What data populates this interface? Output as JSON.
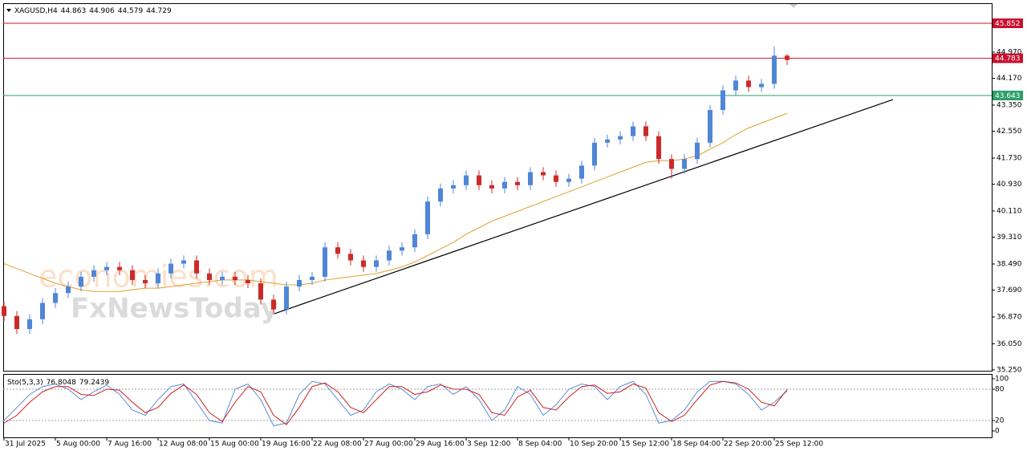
{
  "chart_data": [
    {
      "type": "candlestick",
      "symbol": "XAGUSD,H4",
      "xlim": [
        -0.0625,
        76.9375
      ],
      "xticks": [
        {
          "value": 0,
          "label": "31 Jul 2025"
        },
        {
          "value": 4,
          "label": "5 Aug 00:00"
        },
        {
          "value": 8,
          "label": "7 Aug 16:00"
        },
        {
          "value": 12,
          "label": "12 Aug 08:00"
        },
        {
          "value": 16,
          "label": "15 Aug 00:00"
        },
        {
          "value": 20,
          "label": "19 Aug 16:00"
        },
        {
          "value": 24,
          "label": "22 Aug 08:00"
        },
        {
          "value": 28,
          "label": "27 Aug 00:00"
        },
        {
          "value": 32,
          "label": "29 Aug 16:00"
        },
        {
          "value": 36,
          "label": "3 Sep 12:00"
        },
        {
          "value": 40,
          "label": "8 Sep 04:00"
        },
        {
          "value": 44,
          "label": "10 Sep 20:00"
        },
        {
          "value": 48,
          "label": "15 Sep 12:00"
        },
        {
          "value": 52,
          "label": "18 Sep 04:00"
        },
        {
          "value": 56,
          "label": "22 Sep 20:00"
        },
        {
          "value": 60,
          "label": "25 Sep 12:00"
        }
      ],
      "ylim": [
        35.225,
        46.466
      ],
      "yticks": [
        {
          "value": 35.25,
          "label": "35.250"
        },
        {
          "value": 36.05,
          "label": "36.050"
        },
        {
          "value": 36.87,
          "label": "36.870"
        },
        {
          "value": 37.69,
          "label": "37.690"
        },
        {
          "value": 38.49,
          "label": "38.490"
        },
        {
          "value": 39.31,
          "label": "39.310"
        },
        {
          "value": 40.11,
          "label": "40.110"
        },
        {
          "value": 40.93,
          "label": "40.930"
        },
        {
          "value": 41.73,
          "label": "41.730"
        },
        {
          "value": 42.55,
          "label": "42.550"
        },
        {
          "value": 43.35,
          "label": "43.350"
        },
        {
          "value": 44.17,
          "label": "44.170"
        },
        {
          "value": 44.97,
          "label": "44.970"
        }
      ],
      "up_color": "#4f86d6",
      "down_color": "#cc2a2a",
      "open": [
        37.2,
        36.9,
        36.5,
        36.8,
        37.3,
        37.6,
        37.8,
        38.1,
        38.3,
        38.4,
        38.3,
        38.0,
        37.9,
        38.2,
        38.5,
        38.6,
        38.2,
        38.0,
        38.1,
        38.0,
        37.9,
        37.4,
        37.1,
        37.8,
        38.0,
        38.1,
        39.0,
        38.8,
        38.6,
        38.4,
        38.6,
        38.9,
        39.0,
        39.4,
        40.4,
        40.8,
        40.9,
        41.2,
        40.9,
        40.8,
        41.0,
        40.9,
        41.3,
        41.2,
        41.0,
        41.1,
        41.5,
        42.2,
        42.3,
        42.4,
        42.7,
        42.4,
        41.7,
        41.4,
        41.7,
        42.2,
        43.2,
        43.8,
        44.1,
        43.9,
        44.0,
        44.863
      ],
      "high": [
        37.35,
        37.05,
        36.95,
        37.45,
        37.75,
        37.95,
        38.25,
        38.45,
        38.55,
        38.55,
        38.45,
        38.15,
        38.35,
        38.65,
        38.75,
        38.75,
        38.35,
        38.25,
        38.25,
        38.15,
        38.05,
        37.55,
        37.95,
        38.15,
        38.25,
        39.15,
        39.15,
        38.95,
        38.75,
        38.75,
        39.05,
        39.15,
        39.55,
        40.55,
        40.95,
        41.05,
        41.35,
        41.35,
        41.05,
        41.15,
        41.15,
        41.45,
        41.45,
        41.35,
        41.25,
        41.65,
        42.35,
        42.45,
        42.55,
        42.85,
        42.85,
        42.55,
        41.85,
        41.85,
        42.35,
        43.35,
        43.95,
        44.25,
        44.25,
        44.15,
        45.15,
        44.906
      ],
      "low": [
        36.75,
        36.35,
        36.35,
        36.65,
        37.15,
        37.45,
        37.65,
        37.95,
        38.15,
        38.15,
        37.85,
        37.75,
        37.75,
        38.05,
        38.35,
        38.05,
        37.85,
        37.85,
        37.85,
        37.75,
        37.25,
        36.95,
        36.95,
        37.65,
        37.85,
        37.95,
        38.65,
        38.45,
        38.25,
        38.25,
        38.45,
        38.75,
        38.85,
        39.25,
        40.25,
        40.65,
        40.75,
        40.75,
        40.65,
        40.65,
        40.75,
        40.75,
        41.05,
        40.85,
        40.85,
        40.95,
        41.35,
        42.05,
        42.15,
        42.25,
        42.25,
        41.55,
        41.1,
        41.25,
        41.55,
        42.05,
        43.05,
        43.65,
        43.75,
        43.75,
        43.85,
        44.579
      ],
      "close": [
        36.9,
        36.5,
        36.8,
        37.3,
        37.6,
        37.8,
        38.1,
        38.3,
        38.4,
        38.3,
        38.0,
        37.9,
        38.2,
        38.5,
        38.6,
        38.2,
        38.0,
        38.1,
        38.0,
        37.9,
        37.4,
        37.1,
        37.8,
        38.0,
        38.1,
        39.0,
        38.8,
        38.6,
        38.4,
        38.6,
        38.9,
        39.0,
        39.4,
        40.4,
        40.8,
        40.9,
        41.2,
        40.9,
        40.8,
        41.0,
        40.9,
        41.3,
        41.2,
        41.0,
        41.1,
        41.5,
        42.2,
        42.3,
        42.4,
        42.7,
        42.4,
        41.7,
        41.4,
        41.7,
        42.2,
        43.2,
        43.8,
        44.1,
        43.9,
        44.0,
        44.863,
        44.729
      ],
      "moving_average": {
        "color": "#e0a030",
        "values": [
          38.5,
          38.35,
          38.2,
          38.05,
          37.9,
          37.8,
          37.7,
          37.65,
          37.65,
          37.65,
          37.7,
          37.75,
          37.75,
          37.8,
          37.85,
          37.9,
          37.95,
          38.0,
          38.0,
          38.0,
          37.95,
          37.9,
          37.85,
          37.85,
          37.9,
          38.0,
          38.05,
          38.1,
          38.15,
          38.2,
          38.3,
          38.4,
          38.55,
          38.75,
          38.95,
          39.15,
          39.4,
          39.6,
          39.8,
          39.95,
          40.1,
          40.25,
          40.4,
          40.55,
          40.7,
          40.85,
          41.0,
          41.15,
          41.3,
          41.45,
          41.6,
          41.65,
          41.65,
          41.7,
          41.8,
          42.0,
          42.2,
          42.45,
          42.65,
          42.8,
          42.95,
          43.1
        ]
      },
      "trendline": {
        "color": "#000000",
        "x": [
          21.0625,
          69.25
        ],
        "values": [
          36.97,
          43.52
        ]
      },
      "levels": [
        {
          "value": 45.852,
          "color": "#c8102e"
        },
        {
          "value": 44.783,
          "color": "#c8102e"
        },
        {
          "value": 43.643,
          "color": "#2e9e6a"
        }
      ],
      "watermarks": [
        "economies.com",
        "FxNewsToday"
      ]
    },
    {
      "type": "line",
      "indicator": "Sto(5,3,3)",
      "xlim": [
        -0.0625,
        76.9375
      ],
      "ylim": [
        -12.3,
        109.2
      ],
      "yticks": [
        100,
        80,
        20,
        0
      ],
      "level_lines": [
        80,
        20
      ],
      "series": [
        {
          "color": "#5b8ed6",
          "values": [
            20,
            45,
            70,
            85,
            90,
            80,
            60,
            75,
            88,
            70,
            40,
            30,
            60,
            85,
            90,
            55,
            20,
            15,
            80,
            90,
            60,
            10,
            15,
            70,
            95,
            90,
            60,
            30,
            40,
            75,
            90,
            80,
            60,
            85,
            90,
            70,
            85,
            60,
            20,
            40,
            85,
            70,
            30,
            50,
            80,
            90,
            85,
            60,
            85,
            95,
            70,
            15,
            20,
            40,
            75,
            95,
            95,
            90,
            70,
            40,
            55,
            76.8048
          ]
        },
        {
          "color": "#d02020",
          "values": [
            15,
            30,
            55,
            75,
            85,
            85,
            70,
            68,
            80,
            78,
            55,
            35,
            45,
            72,
            88,
            70,
            35,
            18,
            55,
            85,
            75,
            30,
            12,
            45,
            85,
            92,
            75,
            45,
            35,
            60,
            85,
            85,
            70,
            75,
            88,
            80,
            80,
            70,
            35,
            30,
            65,
            78,
            45,
            40,
            65,
            85,
            88,
            72,
            75,
            90,
            82,
            35,
            18,
            30,
            60,
            88,
            95,
            92,
            80,
            55,
            48,
            79.2439
          ]
        }
      ]
    }
  ]
}
